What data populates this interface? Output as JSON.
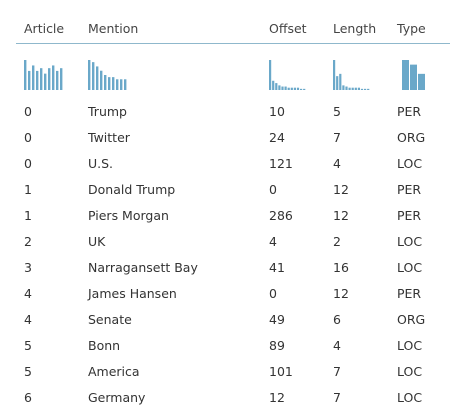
{
  "columns": {
    "article": "Article",
    "mention": "Mention",
    "offset": "Offset",
    "length": "Length",
    "type": "Type"
  },
  "colors": {
    "spark_bar": "#6aa8c9",
    "header_rule": "#8fb8cc"
  },
  "sparklines": {
    "article": [
      22,
      14,
      18,
      14,
      16,
      12,
      16,
      18,
      14,
      16
    ],
    "mention": [
      28,
      26,
      22,
      18,
      14,
      12,
      12,
      10,
      10,
      10
    ],
    "offset": [
      26,
      8,
      6,
      4,
      3,
      3,
      2,
      2,
      2,
      2,
      1,
      1
    ],
    "length": [
      26,
      12,
      14,
      4,
      3,
      2,
      2,
      2,
      2,
      1,
      1,
      1
    ],
    "type": [
      26,
      22,
      14
    ]
  },
  "rows": [
    {
      "article": "0",
      "mention": "Trump",
      "offset": "10",
      "length": "5",
      "type": "PER"
    },
    {
      "article": "0",
      "mention": "Twitter",
      "offset": "24",
      "length": "7",
      "type": "ORG"
    },
    {
      "article": "0",
      "mention": "U.S.",
      "offset": "121",
      "length": "4",
      "type": "LOC"
    },
    {
      "article": "1",
      "mention": "Donald Trump",
      "offset": "0",
      "length": "12",
      "type": "PER"
    },
    {
      "article": "1",
      "mention": "Piers Morgan",
      "offset": "286",
      "length": "12",
      "type": "PER"
    },
    {
      "article": "2",
      "mention": "UK",
      "offset": "4",
      "length": "2",
      "type": "LOC"
    },
    {
      "article": "3",
      "mention": "Narragansett Bay",
      "offset": "41",
      "length": "16",
      "type": "LOC"
    },
    {
      "article": "4",
      "mention": "James Hansen",
      "offset": "0",
      "length": "12",
      "type": "PER"
    },
    {
      "article": "4",
      "mention": "Senate",
      "offset": "49",
      "length": "6",
      "type": "ORG"
    },
    {
      "article": "5",
      "mention": "Bonn",
      "offset": "89",
      "length": "4",
      "type": "LOC"
    },
    {
      "article": "5",
      "mention": "America",
      "offset": "101",
      "length": "7",
      "type": "LOC"
    },
    {
      "article": "6",
      "mention": "Germany",
      "offset": "12",
      "length": "7",
      "type": "LOC"
    }
  ]
}
